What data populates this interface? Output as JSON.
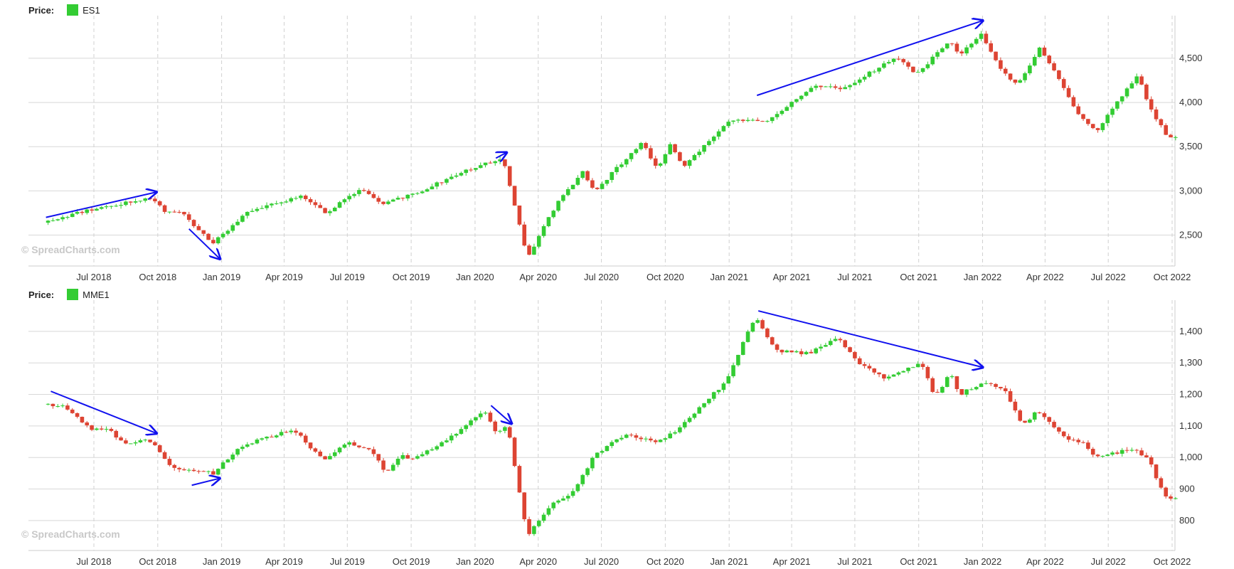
{
  "colors": {
    "up": "#33cc33",
    "down": "#dd4433",
    "arrow": "#1111ee",
    "grid_h": "#d8d8d8",
    "grid_v": "#d0d0d0"
  },
  "watermark": "© SpreadCharts.com",
  "x_ticks": [
    "Jul 2018",
    "Oct 2018",
    "Jan 2019",
    "Apr 2019",
    "Jul 2019",
    "Oct 2019",
    "Jan 2020",
    "Apr 2020",
    "Jul 2020",
    "Oct 2020",
    "Jan 2021",
    "Apr 2021",
    "Jul 2021",
    "Oct 2021",
    "Jan 2022",
    "Apr 2022",
    "Jul 2022",
    "Oct 2022"
  ],
  "chart_data": [
    {
      "type": "candlestick",
      "legend_label": "Price:",
      "series_name": "ES1",
      "x_range": [
        "2018-04-23",
        "2022-10-07"
      ],
      "ylim": [
        2150,
        4950
      ],
      "y_ticks": [
        "2,500",
        "3,000",
        "3,500",
        "4,000",
        "4,500"
      ],
      "y_tick_values": [
        2500,
        3000,
        3500,
        4000,
        4500
      ],
      "grid": true,
      "path": [
        [
          "2018-04-23",
          2640
        ],
        [
          "2018-06-15",
          2760
        ],
        [
          "2018-09-28",
          2930
        ],
        [
          "2018-10-12",
          2780
        ],
        [
          "2018-11-09",
          2740
        ],
        [
          "2018-12-24",
          2410
        ],
        [
          "2019-02-15",
          2780
        ],
        [
          "2019-04-30",
          2940
        ],
        [
          "2019-06-03",
          2750
        ],
        [
          "2019-07-26",
          3020
        ],
        [
          "2019-08-23",
          2850
        ],
        [
          "2019-10-04",
          2950
        ],
        [
          "2019-12-27",
          3240
        ],
        [
          "2020-02-14",
          3370
        ],
        [
          "2020-02-28",
          2950
        ],
        [
          "2020-03-20",
          2230
        ],
        [
          "2020-05-01",
          2850
        ],
        [
          "2020-06-08",
          3220
        ],
        [
          "2020-06-26",
          3000
        ],
        [
          "2020-09-02",
          3560
        ],
        [
          "2020-09-24",
          3230
        ],
        [
          "2020-10-12",
          3520
        ],
        [
          "2020-10-30",
          3270
        ],
        [
          "2021-01-08",
          3800
        ],
        [
          "2021-03-04",
          3800
        ],
        [
          "2021-05-07",
          4200
        ],
        [
          "2021-06-18",
          4150
        ],
        [
          "2021-09-03",
          4520
        ],
        [
          "2021-10-01",
          4310
        ],
        [
          "2021-11-19",
          4700
        ],
        [
          "2021-12-03",
          4540
        ],
        [
          "2022-01-03",
          4790
        ],
        [
          "2022-01-28",
          4400
        ],
        [
          "2022-02-24",
          4200
        ],
        [
          "2022-03-29",
          4630
        ],
        [
          "2022-05-20",
          3900
        ],
        [
          "2022-06-17",
          3670
        ],
        [
          "2022-08-16",
          4300
        ],
        [
          "2022-09-06",
          3900
        ],
        [
          "2022-09-30",
          3600
        ],
        [
          "2022-10-07",
          3620
        ]
      ],
      "annotations": [
        {
          "type": "arrow",
          "from": [
            "2018-04-23",
            2700
          ],
          "to": [
            "2018-10-01",
            2990
          ]
        },
        {
          "type": "arrow",
          "from": [
            "2018-11-15",
            2570
          ],
          "to": [
            "2018-12-31",
            2220
          ]
        },
        {
          "type": "arrow",
          "from": [
            "2020-01-31",
            3370
          ],
          "to": [
            "2020-02-17",
            3440
          ]
        },
        {
          "type": "arrow",
          "from": [
            "2021-02-10",
            4080
          ],
          "to": [
            "2022-01-03",
            4930
          ]
        }
      ]
    },
    {
      "type": "candlestick",
      "legend_label": "Price:",
      "series_name": "MME1",
      "x_range": [
        "2018-04-23",
        "2022-10-07"
      ],
      "ylim": [
        705,
        1490
      ],
      "y_ticks": [
        "800",
        "900",
        "1,000",
        "1,100",
        "1,200",
        "1,300",
        "1,400"
      ],
      "y_tick_values": [
        800,
        900,
        1000,
        1100,
        1200,
        1300,
        1400
      ],
      "grid": true,
      "path": [
        [
          "2018-04-23",
          1170
        ],
        [
          "2018-05-25",
          1160
        ],
        [
          "2018-06-29",
          1090
        ],
        [
          "2018-07-27",
          1090
        ],
        [
          "2018-08-17",
          1040
        ],
        [
          "2018-09-21",
          1060
        ],
        [
          "2018-10-26",
          970
        ],
        [
          "2018-12-24",
          950
        ],
        [
          "2019-01-25",
          1020
        ],
        [
          "2019-02-22",
          1050
        ],
        [
          "2019-04-19",
          1090
        ],
        [
          "2019-05-31",
          990
        ],
        [
          "2019-07-05",
          1050
        ],
        [
          "2019-08-09",
          1020
        ],
        [
          "2019-08-30",
          950
        ],
        [
          "2019-09-20",
          1010
        ],
        [
          "2019-10-04",
          990
        ],
        [
          "2019-11-29",
          1060
        ],
        [
          "2019-12-20",
          1100
        ],
        [
          "2020-01-17",
          1150
        ],
        [
          "2020-02-05",
          1080
        ],
        [
          "2020-02-21",
          1100
        ],
        [
          "2020-03-20",
          750
        ],
        [
          "2020-04-24",
          850
        ],
        [
          "2020-05-22",
          880
        ],
        [
          "2020-06-26",
          1010
        ],
        [
          "2020-08-07",
          1070
        ],
        [
          "2020-09-25",
          1050
        ],
        [
          "2020-10-23",
          1090
        ],
        [
          "2020-11-20",
          1150
        ],
        [
          "2020-12-31",
          1240
        ],
        [
          "2021-02-12",
          1450
        ],
        [
          "2021-03-12",
          1340
        ],
        [
          "2021-04-30",
          1330
        ],
        [
          "2021-06-11",
          1380
        ],
        [
          "2021-07-16",
          1290
        ],
        [
          "2021-08-20",
          1250
        ],
        [
          "2021-10-08",
          1300
        ],
        [
          "2021-10-29",
          1190
        ],
        [
          "2021-11-19",
          1270
        ],
        [
          "2021-12-03",
          1200
        ],
        [
          "2022-01-07",
          1240
        ],
        [
          "2022-02-04",
          1220
        ],
        [
          "2022-03-04",
          1100
        ],
        [
          "2022-03-25",
          1150
        ],
        [
          "2022-05-06",
          1060
        ],
        [
          "2022-05-27",
          1050
        ],
        [
          "2022-06-17",
          1000
        ],
        [
          "2022-08-12",
          1030
        ],
        [
          "2022-09-02",
          990
        ],
        [
          "2022-09-23",
          880
        ],
        [
          "2022-10-07",
          870
        ]
      ],
      "annotations": [
        {
          "type": "arrow",
          "from": [
            "2018-04-30",
            1210
          ],
          "to": [
            "2018-10-01",
            1075
          ]
        },
        {
          "type": "arrow",
          "from": [
            "2018-11-19",
            912
          ],
          "to": [
            "2018-12-31",
            935
          ]
        },
        {
          "type": "arrow",
          "from": [
            "2020-01-24",
            1165
          ],
          "to": [
            "2020-02-24",
            1105
          ]
        },
        {
          "type": "arrow",
          "from": [
            "2021-02-12",
            1465
          ],
          "to": [
            "2022-01-03",
            1285
          ]
        }
      ]
    }
  ]
}
